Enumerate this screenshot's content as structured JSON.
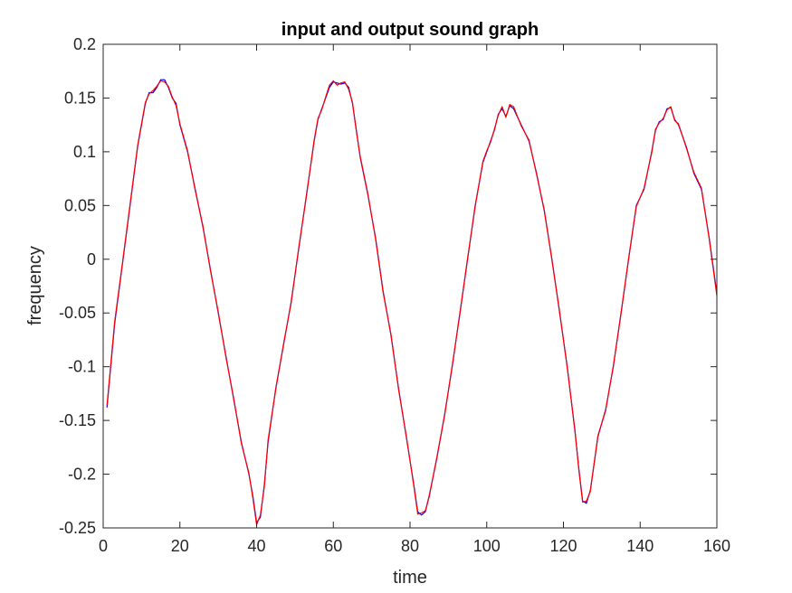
{
  "figure": {
    "title": "input and output sound graph",
    "xlabel": "time",
    "ylabel": "frequency"
  },
  "chart_data": {
    "type": "line",
    "title": "input and output sound graph",
    "xlabel": "time",
    "ylabel": "frequency",
    "xlim": [
      0,
      160
    ],
    "ylim": [
      -0.25,
      0.2
    ],
    "xticks": [
      0,
      20,
      40,
      60,
      80,
      100,
      120,
      140,
      160
    ],
    "xtick_labels": [
      "0",
      "20",
      "40",
      "60",
      "80",
      "100",
      "120",
      "140",
      "160"
    ],
    "yticks": [
      -0.25,
      -0.2,
      -0.15,
      -0.1,
      -0.05,
      0,
      0.05,
      0.1,
      0.15,
      0.2
    ],
    "ytick_labels": [
      "-0.25",
      "-0.2",
      "-0.15",
      "-0.1",
      "-0.05",
      "0",
      "0.05",
      "0.1",
      "0.15",
      "0.2"
    ],
    "grid": false,
    "legend": false,
    "series": [
      {
        "color": "#0000ff",
        "x": [
          1,
          3,
          5,
          7,
          9,
          11,
          12,
          13,
          14,
          15,
          16,
          17,
          18,
          19,
          20,
          22,
          24,
          26,
          28,
          30,
          32,
          34,
          36,
          38,
          39,
          40,
          41,
          42,
          43,
          45,
          47,
          49,
          51,
          53,
          55,
          56,
          57,
          58,
          59,
          60,
          61,
          62,
          63,
          64,
          65,
          66,
          67,
          69,
          71,
          73,
          75,
          77,
          79,
          81,
          82,
          83,
          84,
          85,
          87,
          89,
          91,
          93,
          95,
          97,
          99,
          100,
          101,
          102,
          103,
          104,
          105,
          106,
          107,
          109,
          111,
          113,
          115,
          117,
          119,
          121,
          123,
          124,
          125,
          126,
          127,
          129,
          131,
          133,
          135,
          137,
          139,
          141,
          143,
          144,
          145,
          146,
          147,
          148,
          149,
          150,
          152,
          154,
          156,
          158,
          160
        ],
        "y": [
          -0.138,
          -0.06,
          -0.005,
          0.05,
          0.105,
          0.145,
          0.155,
          0.155,
          0.16,
          0.167,
          0.167,
          0.16,
          0.15,
          0.145,
          0.125,
          0.1,
          0.065,
          0.03,
          -0.01,
          -0.05,
          -0.09,
          -0.13,
          -0.17,
          -0.2,
          -0.22,
          -0.245,
          -0.24,
          -0.21,
          -0.17,
          -0.12,
          -0.08,
          -0.04,
          0.01,
          0.06,
          0.11,
          0.13,
          0.14,
          0.15,
          0.16,
          0.165,
          0.164,
          0.163,
          0.164,
          0.16,
          0.145,
          0.12,
          0.095,
          0.06,
          0.02,
          -0.03,
          -0.07,
          -0.12,
          -0.165,
          -0.21,
          -0.235,
          -0.238,
          -0.235,
          -0.22,
          -0.185,
          -0.145,
          -0.1,
          -0.05,
          0.0,
          0.05,
          0.09,
          0.1,
          0.11,
          0.12,
          0.135,
          0.14,
          0.133,
          0.143,
          0.14,
          0.125,
          0.11,
          0.08,
          0.045,
          0.0,
          -0.05,
          -0.1,
          -0.16,
          -0.195,
          -0.225,
          -0.227,
          -0.215,
          -0.165,
          -0.14,
          -0.1,
          -0.05,
          0.0,
          0.05,
          0.065,
          0.1,
          0.12,
          0.128,
          0.13,
          0.14,
          0.141,
          0.13,
          0.125,
          0.105,
          0.08,
          0.065,
          0.02,
          -0.032
        ]
      },
      {
        "color": "#ff0000",
        "x": [
          1,
          3,
          5,
          7,
          9,
          11,
          12,
          13,
          14,
          15,
          16,
          17,
          18,
          19,
          20,
          22,
          24,
          26,
          28,
          30,
          32,
          34,
          36,
          38,
          39,
          40,
          41,
          42,
          43,
          45,
          47,
          49,
          51,
          53,
          55,
          56,
          57,
          58,
          59,
          60,
          61,
          62,
          63,
          64,
          65,
          66,
          67,
          69,
          71,
          73,
          75,
          77,
          79,
          81,
          82,
          83,
          84,
          85,
          87,
          89,
          91,
          93,
          95,
          97,
          99,
          100,
          101,
          102,
          103,
          104,
          105,
          106,
          107,
          109,
          111,
          113,
          115,
          117,
          119,
          121,
          123,
          124,
          125,
          126,
          127,
          129,
          131,
          133,
          135,
          137,
          139,
          141,
          143,
          144,
          145,
          146,
          147,
          148,
          149,
          150,
          152,
          154,
          156,
          158,
          160
        ],
        "y": [
          -0.136,
          -0.058,
          -0.004,
          0.051,
          0.106,
          0.146,
          0.154,
          0.157,
          0.161,
          0.166,
          0.165,
          0.161,
          0.151,
          0.143,
          0.126,
          0.101,
          0.064,
          0.031,
          -0.011,
          -0.049,
          -0.091,
          -0.129,
          -0.171,
          -0.199,
          -0.222,
          -0.247,
          -0.238,
          -0.212,
          -0.168,
          -0.121,
          -0.079,
          -0.041,
          0.011,
          0.059,
          0.111,
          0.131,
          0.139,
          0.151,
          0.162,
          0.166,
          0.162,
          0.164,
          0.165,
          0.158,
          0.146,
          0.119,
          0.096,
          0.061,
          0.019,
          -0.031,
          -0.069,
          -0.121,
          -0.164,
          -0.211,
          -0.237,
          -0.236,
          -0.234,
          -0.221,
          -0.184,
          -0.146,
          -0.099,
          -0.051,
          0.001,
          0.049,
          0.091,
          0.101,
          0.109,
          0.121,
          0.134,
          0.142,
          0.132,
          0.144,
          0.142,
          0.124,
          0.111,
          0.079,
          0.046,
          -0.001,
          -0.049,
          -0.101,
          -0.159,
          -0.196,
          -0.226,
          -0.225,
          -0.216,
          -0.164,
          -0.141,
          -0.099,
          -0.051,
          0.001,
          0.049,
          0.066,
          0.099,
          0.121,
          0.127,
          0.131,
          0.139,
          0.142,
          0.129,
          0.126,
          0.104,
          0.081,
          0.066,
          0.019,
          -0.034
        ]
      }
    ]
  }
}
